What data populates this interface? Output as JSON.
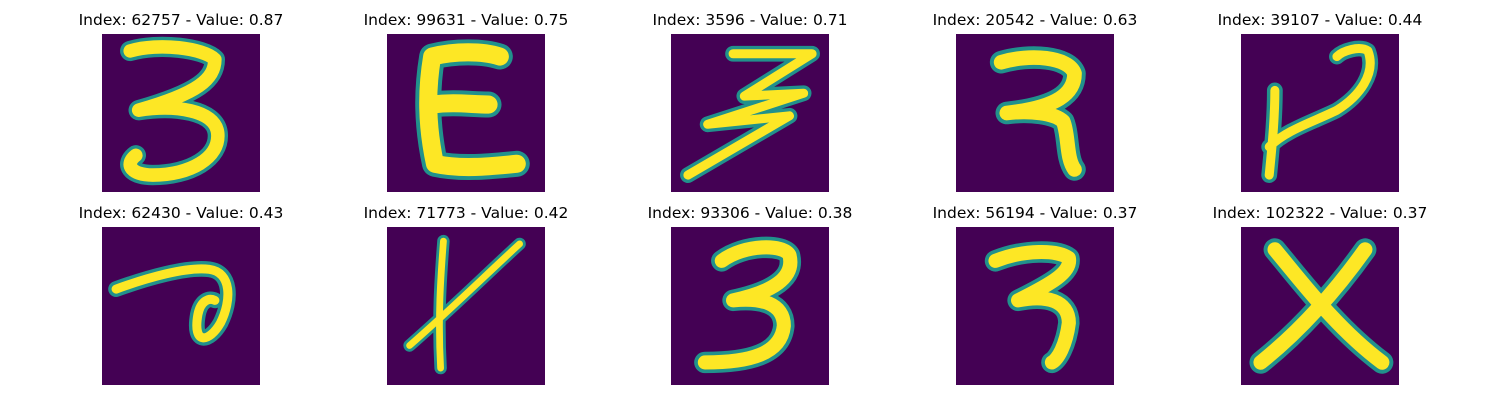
{
  "panels": [
    {
      "title": "Index: 62757 - Value: 0.87",
      "glyph": "three-tall"
    },
    {
      "title": "Index: 99631 - Value: 0.75",
      "glyph": "E"
    },
    {
      "title": "Index: 3596 - Value: 0.71",
      "glyph": "three-zigzag"
    },
    {
      "title": "Index: 20542 - Value: 0.63",
      "glyph": "seven-bar"
    },
    {
      "title": "Index: 39107 - Value: 0.44",
      "glyph": "v-hook"
    },
    {
      "title": "Index: 62430 - Value: 0.43",
      "glyph": "loop"
    },
    {
      "title": "Index: 71773 - Value: 0.42",
      "glyph": "k-stroke"
    },
    {
      "title": "Index: 93306 - Value: 0.38",
      "glyph": "three-round"
    },
    {
      "title": "Index: 56194 - Value: 0.37",
      "glyph": "three-short"
    },
    {
      "title": "Index: 102322 - Value: 0.37",
      "glyph": "X"
    }
  ],
  "colors": {
    "background": "#440154",
    "stroke_edge": "#21918c",
    "stroke_core": "#fde725"
  }
}
